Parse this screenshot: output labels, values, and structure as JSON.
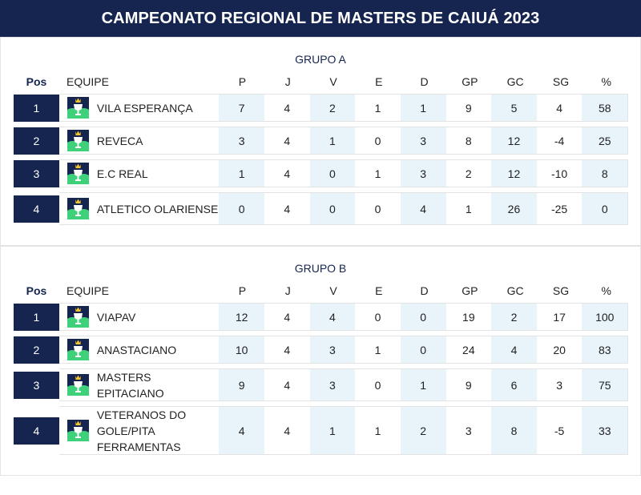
{
  "title": "CAMPEONATO REGIONAL DE MASTERS DE CAIUÁ 2023",
  "columns": {
    "pos": "Pos",
    "team": "EQUIPE",
    "p": "P",
    "j": "J",
    "v": "V",
    "e": "E",
    "d": "D",
    "gp": "GP",
    "gc": "GC",
    "sg": "SG",
    "pct": "%"
  },
  "groups": [
    {
      "name": "GRUPO A",
      "rows": [
        {
          "pos": "1",
          "team": "VILA ESPERANÇA",
          "p": "7",
          "j": "4",
          "v": "2",
          "e": "1",
          "d": "1",
          "gp": "9",
          "gc": "5",
          "sg": "4",
          "pct": "58"
        },
        {
          "pos": "2",
          "team": "REVECA",
          "p": "3",
          "j": "4",
          "v": "1",
          "e": "0",
          "d": "3",
          "gp": "8",
          "gc": "12",
          "sg": "-4",
          "pct": "25"
        },
        {
          "pos": "3",
          "team": "E.C REAL",
          "p": "1",
          "j": "4",
          "v": "0",
          "e": "1",
          "d": "3",
          "gp": "2",
          "gc": "12",
          "sg": "-10",
          "pct": "8"
        },
        {
          "pos": "4",
          "team": "ATLETICO OLARIENSE",
          "p": "0",
          "j": "4",
          "v": "0",
          "e": "0",
          "d": "4",
          "gp": "1",
          "gc": "26",
          "sg": "-25",
          "pct": "0"
        }
      ]
    },
    {
      "name": "GRUPO B",
      "rows": [
        {
          "pos": "1",
          "team": "VIAPAV",
          "p": "12",
          "j": "4",
          "v": "4",
          "e": "0",
          "d": "0",
          "gp": "19",
          "gc": "2",
          "sg": "17",
          "pct": "100"
        },
        {
          "pos": "2",
          "team": "ANASTACIANO",
          "p": "10",
          "j": "4",
          "v": "3",
          "e": "1",
          "d": "0",
          "gp": "24",
          "gc": "4",
          "sg": "20",
          "pct": "83"
        },
        {
          "pos": "3",
          "team": "MASTERS EPITACIANO",
          "p": "9",
          "j": "4",
          "v": "3",
          "e": "0",
          "d": "1",
          "gp": "9",
          "gc": "6",
          "sg": "3",
          "pct": "75"
        },
        {
          "pos": "4",
          "team": "VETERANOS DO GOLE/PITA FERRAMENTAS",
          "p": "4",
          "j": "4",
          "v": "1",
          "e": "1",
          "d": "2",
          "gp": "3",
          "gc": "8",
          "sg": "-5",
          "pct": "33"
        }
      ]
    }
  ],
  "icon": "team-shield-icon",
  "colors": {
    "navy": "#15254f",
    "shade": "#e8f3fa",
    "logo_green": "#3fd07a",
    "logo_gold": "#f2c230"
  }
}
